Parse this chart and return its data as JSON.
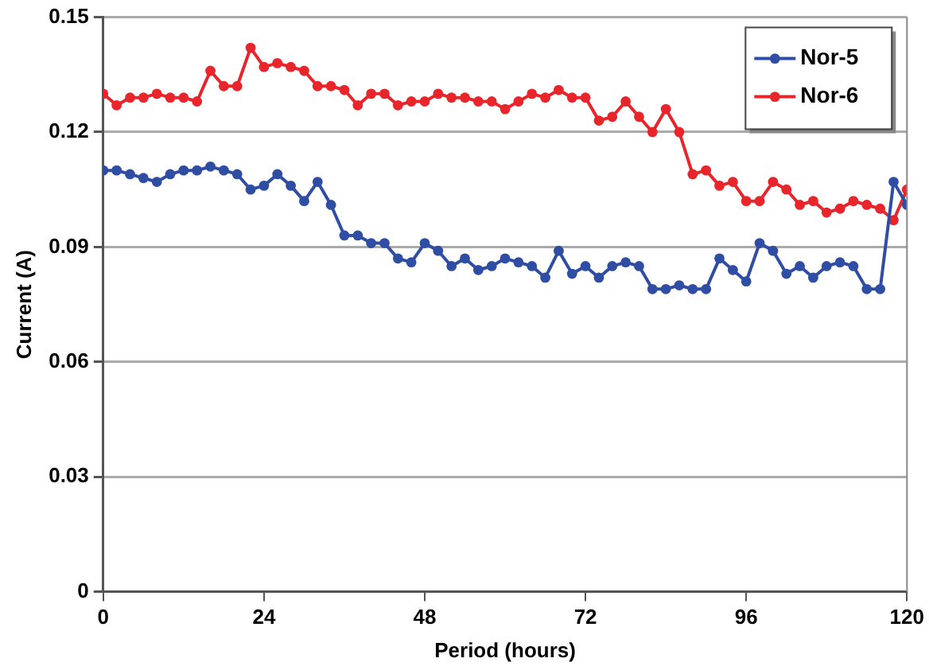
{
  "chart_data": {
    "type": "line",
    "xlabel": "Period (hours)",
    "ylabel": "Current (A)",
    "x": [
      0,
      2,
      4,
      6,
      8,
      10,
      12,
      14,
      16,
      18,
      20,
      22,
      24,
      26,
      28,
      30,
      32,
      34,
      36,
      38,
      40,
      42,
      44,
      46,
      48,
      50,
      52,
      54,
      56,
      58,
      60,
      62,
      64,
      66,
      68,
      70,
      72,
      74,
      76,
      78,
      80,
      82,
      84,
      86,
      88,
      90,
      92,
      94,
      96,
      98,
      100,
      102,
      104,
      106,
      108,
      110,
      112,
      114,
      116,
      118,
      120
    ],
    "xlim": [
      0,
      120
    ],
    "xticks": [
      0,
      24,
      48,
      72,
      96,
      120
    ],
    "ylim": [
      0,
      0.15
    ],
    "yticks": [
      0,
      0.03,
      0.06,
      0.09,
      0.12,
      0.15
    ],
    "grid": "y",
    "legend": "top right",
    "marker": "circle",
    "line_style": "solid",
    "series": [
      {
        "name": "Nor-5",
        "color": "#2f4ea3",
        "values": [
          0.11,
          0.11,
          0.109,
          0.108,
          0.107,
          0.109,
          0.11,
          0.11,
          0.111,
          0.11,
          0.109,
          0.105,
          0.106,
          0.109,
          0.106,
          0.102,
          0.107,
          0.101,
          0.093,
          0.093,
          0.091,
          0.091,
          0.087,
          0.086,
          0.091,
          0.089,
          0.085,
          0.087,
          0.084,
          0.085,
          0.087,
          0.086,
          0.085,
          0.082,
          0.089,
          0.083,
          0.085,
          0.082,
          0.085,
          0.086,
          0.085,
          0.079,
          0.079,
          0.08,
          0.079,
          0.079,
          0.087,
          0.084,
          0.081,
          0.091,
          0.089,
          0.083,
          0.085,
          0.082,
          0.085,
          0.086,
          0.085,
          0.079,
          0.079,
          0.107,
          0.101
        ]
      },
      {
        "name": "Nor-6",
        "color": "#e8252b",
        "values": [
          0.13,
          0.127,
          0.129,
          0.129,
          0.13,
          0.129,
          0.129,
          0.128,
          0.136,
          0.132,
          0.132,
          0.142,
          0.137,
          0.138,
          0.137,
          0.136,
          0.132,
          0.132,
          0.131,
          0.127,
          0.13,
          0.13,
          0.127,
          0.128,
          0.128,
          0.13,
          0.129,
          0.129,
          0.128,
          0.128,
          0.126,
          0.128,
          0.13,
          0.129,
          0.131,
          0.129,
          0.129,
          0.123,
          0.124,
          0.128,
          0.124,
          0.12,
          0.126,
          0.12,
          0.109,
          0.11,
          0.106,
          0.107,
          0.102,
          0.102,
          0.107,
          0.105,
          0.101,
          0.102,
          0.099,
          0.1,
          0.102,
          0.101,
          0.1,
          0.097,
          0.105
        ]
      }
    ]
  }
}
